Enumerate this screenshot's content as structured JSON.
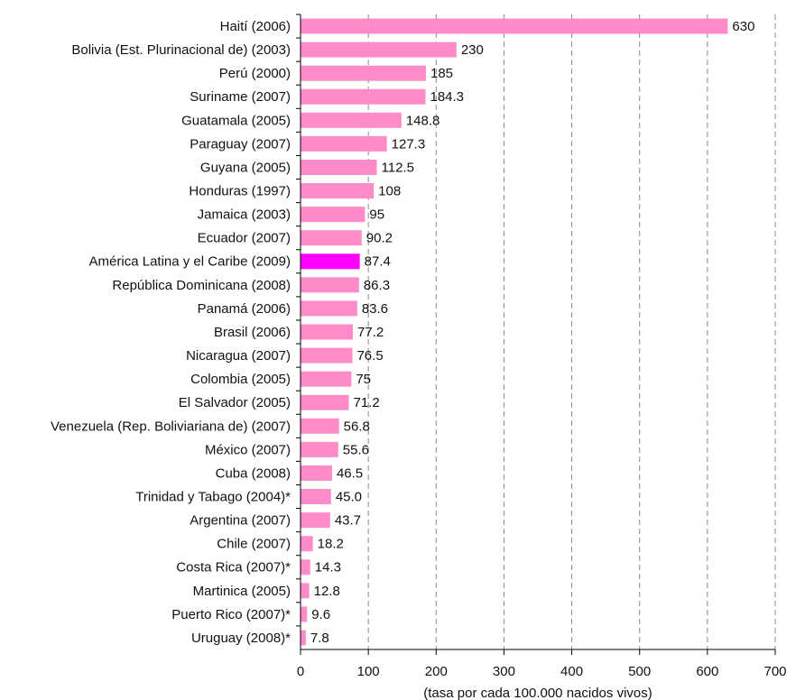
{
  "chart_data": {
    "type": "barh",
    "x_label": "(tasa por cada 100.000 nacidos vivos)",
    "categories": [
      "Haití (2006)",
      "Bolivia (Est. Plurinacional de)  (2003)",
      "Perú (2000)",
      "Suriname (2007)",
      "Guatamala (2005)",
      "Paraguay (2007)",
      "Guyana (2005)",
      "Honduras (1997)",
      "Jamaica (2003)",
      "Ecuador (2007)",
      "América Latina y el Caribe (2009)",
      "República Dominicana (2008)",
      "Panamá (2006)",
      "Brasil (2006)",
      "Nicaragua (2007)",
      "Colombia (2005)",
      "El Salvador (2005)",
      "Venezuela (Rep. Boliviariana de) (2007)",
      "México (2007)",
      "Cuba (2008)",
      "Trinidad y Tabago (2004)*",
      "Argentina (2007)",
      "Chile (2007)",
      "Costa Rica (2007)*",
      "Martinica (2005)",
      "Puerto Rico (2007)*",
      "Uruguay (2008)*"
    ],
    "values": [
      630,
      230,
      185,
      184.3,
      148.8,
      127.3,
      112.5,
      108,
      95,
      90.2,
      87.4,
      86.3,
      83.6,
      77.2,
      76.5,
      75,
      71.2,
      56.8,
      55.6,
      46.5,
      45.0,
      43.7,
      18.2,
      14.3,
      12.8,
      9.6,
      7.8
    ],
    "value_labels": [
      "630",
      "230",
      "185",
      "184.3",
      "148.8",
      "127.3",
      "112.5",
      "108",
      "95",
      "90.2",
      "87.4",
      "86.3",
      "83.6",
      "77.2",
      "76.5",
      "75",
      "71.2",
      "56.8",
      "55.6",
      "46.5",
      "45.0",
      "43.7",
      "18.2",
      "14.3",
      "12.8",
      "9.6",
      "7.8"
    ],
    "colors": [
      "#ff8cc8",
      "#ff8cc8",
      "#ff8cc8",
      "#ff8cc8",
      "#ff8cc8",
      "#ff8cc8",
      "#ff8cc8",
      "#ff8cc8",
      "#ff8cc8",
      "#ff8cc8",
      "#ff00ff",
      "#ff8cc8",
      "#ff8cc8",
      "#ff8cc8",
      "#ff8cc8",
      "#ff8cc8",
      "#ff8cc8",
      "#ff8cc8",
      "#ff8cc8",
      "#ff8cc8",
      "#ff8cc8",
      "#ff8cc8",
      "#ff8cc8",
      "#ff8cc8",
      "#ff8cc8",
      "#ff8cc8",
      "#ff8cc8"
    ],
    "xlim": [
      0,
      700
    ],
    "xticks": [
      0,
      100,
      200,
      300,
      400,
      500,
      600,
      700
    ],
    "grid": true
  }
}
